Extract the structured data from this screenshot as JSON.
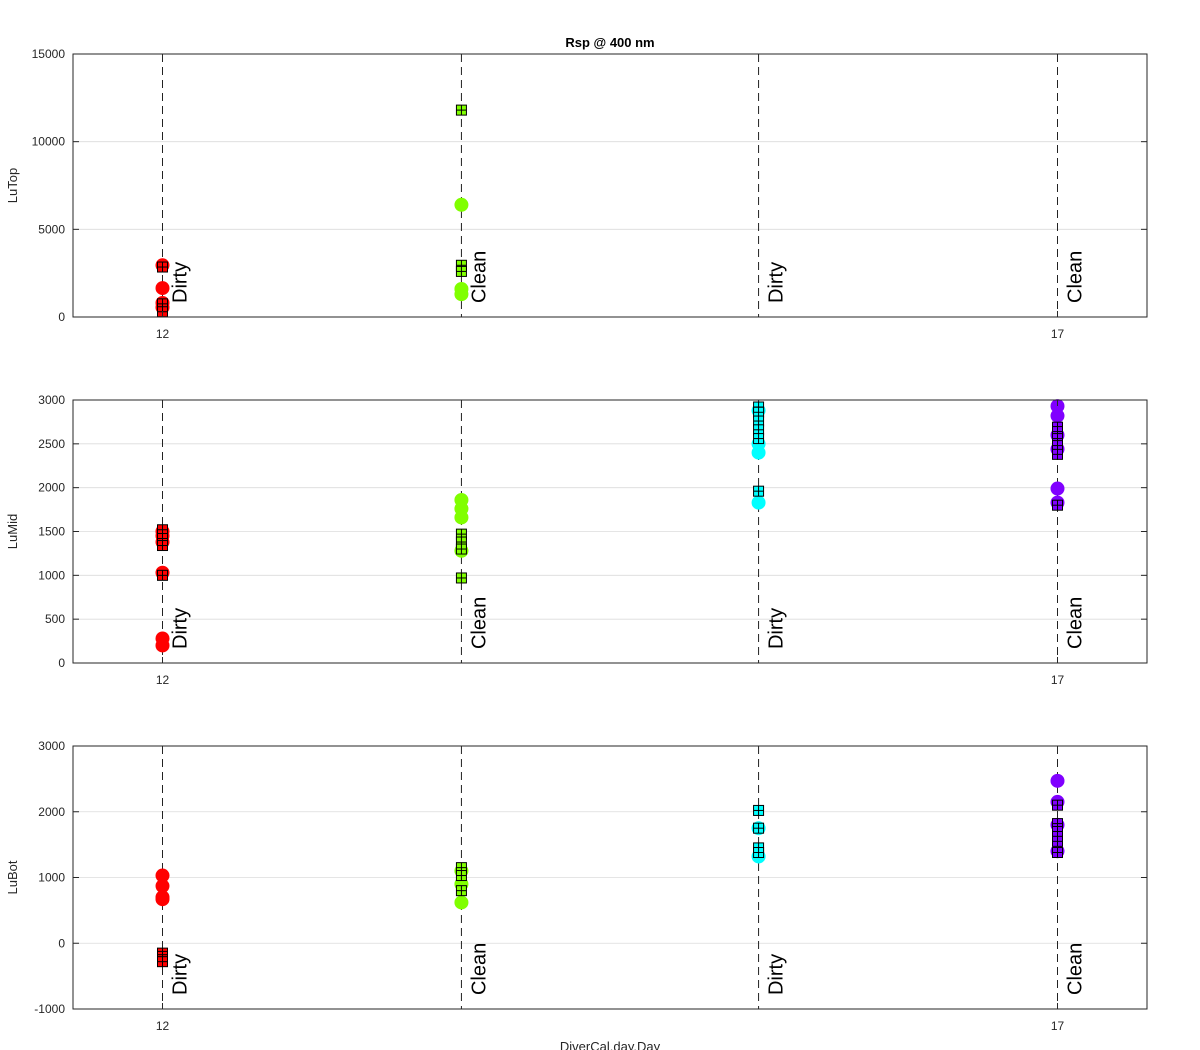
{
  "figure": {
    "title": "Rsp @ 400 nm",
    "xlabel": "DiverCal.day.Day"
  },
  "chart_data": [
    {
      "type": "scatter",
      "title": "Rsp @ 400 nm",
      "ylabel": "LuTop",
      "xlabel": "",
      "xlim": [
        11.5,
        17.5
      ],
      "ylim": [
        0,
        15000
      ],
      "yticks": [
        0,
        5000,
        10000,
        15000
      ],
      "ytick_labels": [
        "0",
        "5000",
        "10000",
        "15000"
      ],
      "xticks": [
        12,
        17
      ],
      "xtick_labels": [
        "12",
        "17"
      ],
      "grid": "y",
      "vlines": [
        12,
        13.67,
        15.33,
        17
      ],
      "annotations": [
        {
          "x": 12,
          "text": "Dirty"
        },
        {
          "x": 13.67,
          "text": "Clean"
        },
        {
          "x": 15.33,
          "text": "Dirty"
        },
        {
          "x": 17,
          "text": "Clean"
        }
      ],
      "series": [
        {
          "name": "Dirty-12 circles",
          "color": "#ff0000",
          "marker": "circle",
          "x": 12,
          "values": [
            2950,
            1650,
            800,
            550
          ]
        },
        {
          "name": "Dirty-12 squares",
          "color": "#ff0000",
          "marker": "square",
          "x": 12,
          "values": [
            2850,
            750,
            300
          ]
        },
        {
          "name": "Clean circles",
          "color": "#80ff00",
          "marker": "circle",
          "x": 13.67,
          "values": [
            6400,
            1600,
            1300
          ]
        },
        {
          "name": "Clean squares",
          "color": "#80ff00",
          "marker": "square",
          "x": 13.67,
          "values": [
            11800,
            2950,
            2600
          ]
        }
      ]
    },
    {
      "type": "scatter",
      "ylabel": "LuMid",
      "xlabel": "",
      "xlim": [
        11.5,
        17.5
      ],
      "ylim": [
        0,
        3000
      ],
      "yticks": [
        0,
        500,
        1000,
        1500,
        2000,
        2500,
        3000
      ],
      "ytick_labels": [
        "0",
        "500",
        "1000",
        "1500",
        "2000",
        "2500",
        "3000"
      ],
      "xticks": [
        12,
        17
      ],
      "xtick_labels": [
        "12",
        "17"
      ],
      "grid": "y",
      "vlines": [
        12,
        13.67,
        15.33,
        17
      ],
      "annotations": [
        {
          "x": 12,
          "text": "Dirty"
        },
        {
          "x": 13.67,
          "text": "Clean"
        },
        {
          "x": 15.33,
          "text": "Dirty"
        },
        {
          "x": 17,
          "text": "Clean"
        }
      ],
      "series": [
        {
          "name": "Dirty-12 circles",
          "color": "#ff0000",
          "marker": "circle",
          "x": 12,
          "values": [
            1500,
            1450,
            1380,
            1030,
            280,
            200
          ]
        },
        {
          "name": "Dirty-12 squares",
          "color": "#ff0000",
          "marker": "square",
          "x": 12,
          "values": [
            1520,
            1420,
            1340,
            1000
          ]
        },
        {
          "name": "Clean circles",
          "color": "#80ff00",
          "marker": "circle",
          "x": 13.67,
          "values": [
            1860,
            1760,
            1660,
            1280
          ]
        },
        {
          "name": "Clean squares",
          "color": "#80ff00",
          "marker": "square",
          "x": 13.67,
          "values": [
            1470,
            1380,
            1300,
            970
          ]
        },
        {
          "name": "Dirty-15 circles",
          "color": "#00ffff",
          "marker": "circle",
          "x": 15.33,
          "values": [
            2880,
            2500,
            2400,
            1830
          ]
        },
        {
          "name": "Dirty-15 squares",
          "color": "#00ffff",
          "marker": "square",
          "x": 15.33,
          "values": [
            2920,
            2860,
            2760,
            2660,
            2560,
            1960
          ]
        },
        {
          "name": "Clean-17 circles",
          "color": "#8000ff",
          "marker": "circle",
          "x": 17,
          "values": [
            2930,
            2820,
            2600,
            2440,
            1990,
            1830
          ]
        },
        {
          "name": "Clean-17 squares",
          "color": "#8000ff",
          "marker": "square",
          "x": 17,
          "values": [
            2690,
            2640,
            2560,
            2480,
            2380,
            1800
          ]
        }
      ]
    },
    {
      "type": "scatter",
      "ylabel": "LuBot",
      "xlabel": "DiverCal.day.Day",
      "xlim": [
        11.5,
        17.5
      ],
      "ylim": [
        -1000,
        3000
      ],
      "yticks": [
        -1000,
        0,
        1000,
        2000,
        3000
      ],
      "ytick_labels": [
        "-1000",
        "0",
        "1000",
        "2000",
        "3000"
      ],
      "xticks": [
        12,
        17
      ],
      "xtick_labels": [
        "12",
        "17"
      ],
      "grid": "y",
      "vlines": [
        12,
        13.67,
        15.33,
        17
      ],
      "annotations": [
        {
          "x": 12,
          "text": "Dirty"
        },
        {
          "x": 13.67,
          "text": "Clean"
        },
        {
          "x": 15.33,
          "text": "Dirty"
        },
        {
          "x": 17,
          "text": "Clean"
        }
      ],
      "series": [
        {
          "name": "Dirty-12 circles",
          "color": "#ff0000",
          "marker": "circle",
          "x": 12,
          "values": [
            1030,
            870,
            700,
            670
          ]
        },
        {
          "name": "Dirty-12 squares",
          "color": "#ff0000",
          "marker": "square",
          "x": 12,
          "values": [
            -150,
            -200,
            -250,
            -280
          ]
        },
        {
          "name": "Clean circles",
          "color": "#80ff00",
          "marker": "circle",
          "x": 13.67,
          "values": [
            1100,
            900,
            620
          ]
        },
        {
          "name": "Clean squares",
          "color": "#80ff00",
          "marker": "square",
          "x": 13.67,
          "values": [
            1150,
            1030,
            800
          ]
        },
        {
          "name": "Dirty-15 circles",
          "color": "#00ffff",
          "marker": "circle",
          "x": 15.33,
          "values": [
            1320,
            1750
          ]
        },
        {
          "name": "Dirty-15 squares",
          "color": "#00ffff",
          "marker": "square",
          "x": 15.33,
          "values": [
            2020,
            1750,
            1450,
            1380
          ]
        },
        {
          "name": "Clean-17 circles",
          "color": "#8000ff",
          "marker": "circle",
          "x": 17,
          "values": [
            2470,
            2150,
            1800,
            1400
          ]
        },
        {
          "name": "Clean-17 squares",
          "color": "#8000ff",
          "marker": "square",
          "x": 17,
          "values": [
            2100,
            1820,
            1700,
            1550,
            1380
          ]
        }
      ]
    }
  ]
}
